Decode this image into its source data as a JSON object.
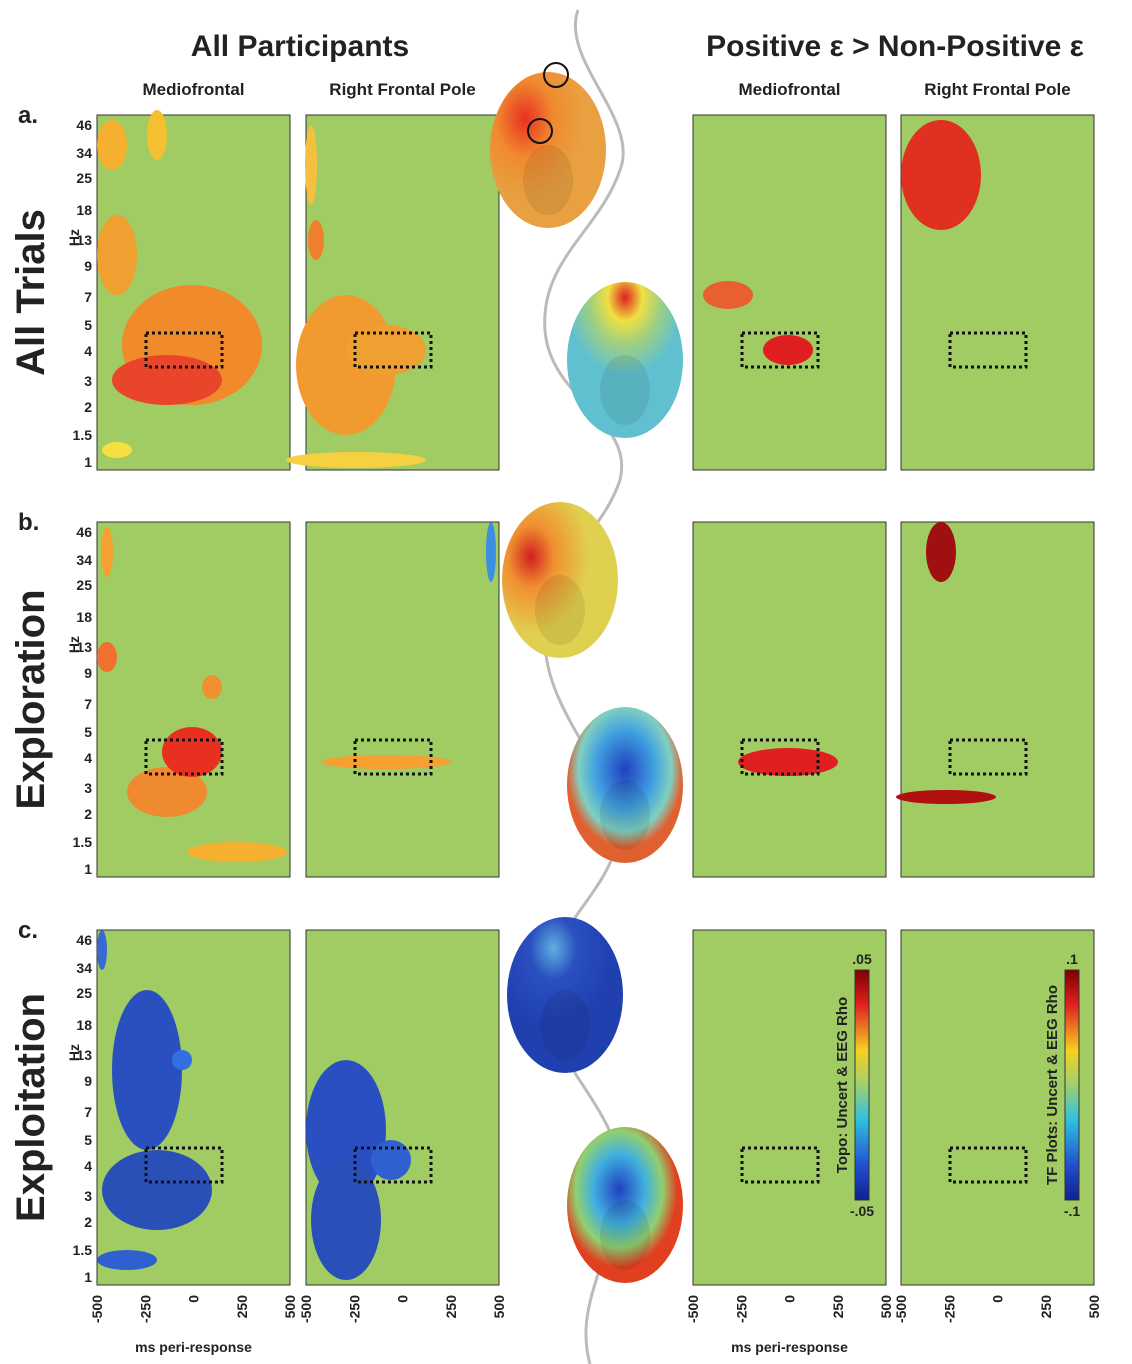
{
  "headers": {
    "left": "All Participants",
    "right": "Positive ε > Non-Positive ε"
  },
  "columns": [
    "Mediofrontal",
    "Right Frontal Pole",
    "Mediofrontal",
    "Right Frontal Pole"
  ],
  "rows": [
    {
      "label": "a.",
      "name": "All Trials"
    },
    {
      "label": "b.",
      "name": "Exploration"
    },
    {
      "label": "c.",
      "name": "Exploitation"
    }
  ],
  "y_axis": {
    "label": "Hz",
    "ticks": [
      "46",
      "34",
      "25",
      "18",
      "13",
      "9",
      "7",
      "5",
      "4",
      "3",
      "2",
      "1.5",
      "1"
    ]
  },
  "x_axis": {
    "label": "ms peri-response",
    "ticks": [
      "-500",
      "-250",
      "0",
      "250",
      "500"
    ]
  },
  "colorbars": [
    {
      "label": "Topo: Uncert & EEG Rho",
      "max": ".05",
      "min": "-.05"
    },
    {
      "label": "TF Plots: Uncert & EEG Rho",
      "max": ".1",
      "min": "-.1"
    }
  ]
}
